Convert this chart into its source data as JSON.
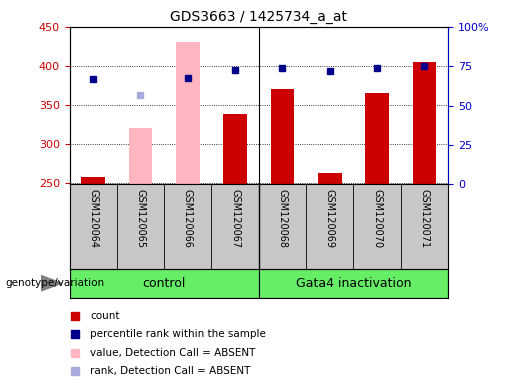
{
  "title": "GDS3663 / 1425734_a_at",
  "samples": [
    "GSM120064",
    "GSM120065",
    "GSM120066",
    "GSM120067",
    "GSM120068",
    "GSM120069",
    "GSM120070",
    "GSM120071"
  ],
  "red_bars": [
    258,
    null,
    null,
    338,
    370,
    263,
    365,
    405
  ],
  "pink_bars": [
    null,
    320,
    430,
    null,
    null,
    null,
    null,
    null
  ],
  "blue_squares": [
    383,
    null,
    385,
    395,
    397,
    393,
    397,
    400
  ],
  "light_blue_squares": [
    null,
    362,
    null,
    null,
    null,
    null,
    null,
    null
  ],
  "ylim_left": [
    248,
    450
  ],
  "ylim_right": [
    0,
    100
  ],
  "yticks_left": [
    250,
    300,
    350,
    400,
    450
  ],
  "yticks_right": [
    0,
    25,
    50,
    75,
    100
  ],
  "yticklabels_right": [
    "0",
    "25",
    "50",
    "75",
    "100%"
  ],
  "group_label_text": "genotype/variation",
  "bar_width": 0.5,
  "red_color": "#CC0000",
  "pink_color": "#FFB6C1",
  "blue_color": "#00008B",
  "light_blue_color": "#AAAADD",
  "grid_color": "black",
  "tick_color_left": "#CC0000",
  "tick_color_right": "#0000CC",
  "bg_color": "#C8C8C8",
  "group_color": "#66EE66",
  "control_cols": [
    0,
    1,
    2,
    3
  ],
  "gata4_cols": [
    4,
    5,
    6,
    7
  ],
  "legend_items": [
    {
      "color": "#CC0000",
      "label": "count"
    },
    {
      "color": "#00008B",
      "label": "percentile rank within the sample"
    },
    {
      "color": "#FFB6C1",
      "label": "value, Detection Call = ABSENT"
    },
    {
      "color": "#AAAADD",
      "label": "rank, Detection Call = ABSENT"
    }
  ]
}
